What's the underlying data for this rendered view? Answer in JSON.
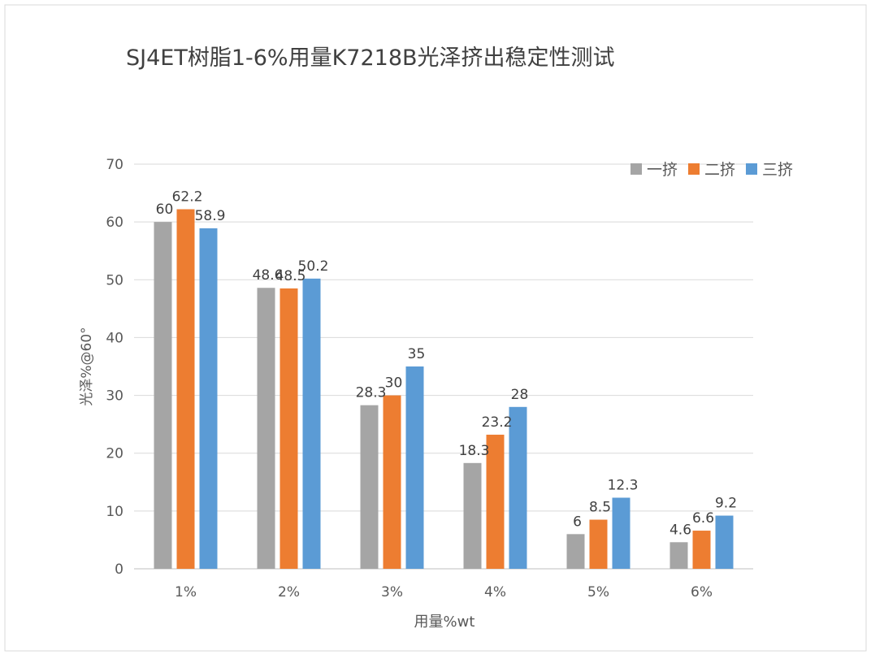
{
  "chart_data": {
    "type": "bar",
    "title": "SJ4ET树脂1-6%用量K7218B光泽挤出稳定性测试",
    "xlabel": "用量%wt",
    "ylabel": "光泽%@60°",
    "categories": [
      "1%",
      "2%",
      "3%",
      "4%",
      "5%",
      "6%"
    ],
    "ylim": [
      0,
      70
    ],
    "yticks": [
      "0",
      "10",
      "20",
      "30",
      "40",
      "50",
      "60",
      "70"
    ],
    "grid": true,
    "legend_position": "top-right",
    "series": [
      {
        "name": "一挤",
        "color": "#a5a5a5",
        "values": [
          60,
          48.6,
          28.3,
          18.3,
          6,
          4.6
        ],
        "labels": [
          "60",
          "48.6",
          "28.3",
          "18.3",
          "6",
          "4.6"
        ]
      },
      {
        "name": "二挤",
        "color": "#ed7d31",
        "values": [
          62.2,
          48.5,
          30,
          23.2,
          8.5,
          6.6
        ],
        "labels": [
          "62.2",
          "48.5",
          "30",
          "23.2",
          "8.5",
          "6.6"
        ]
      },
      {
        "name": "三挤",
        "color": "#5b9bd5",
        "values": [
          58.9,
          50.2,
          35,
          28,
          12.3,
          9.2
        ],
        "labels": [
          "58.9",
          "50.2",
          "35",
          "28",
          "12.3",
          "9.2"
        ]
      }
    ]
  }
}
